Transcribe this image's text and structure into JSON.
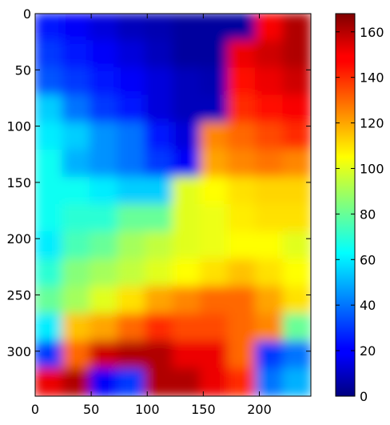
{
  "chart_data": {
    "type": "heatmap",
    "title": "",
    "xlabel": "",
    "ylabel": "",
    "xlim": [
      0,
      246
    ],
    "ylim": [
      340,
      0
    ],
    "x_ticks": [
      0,
      50,
      100,
      150,
      200
    ],
    "y_ticks": [
      0,
      50,
      100,
      150,
      200,
      250,
      300
    ],
    "colormap": "jet",
    "colorbar": {
      "min": 0,
      "max": 168,
      "ticks": [
        0,
        20,
        40,
        60,
        80,
        100,
        120,
        140,
        160
      ]
    },
    "grid_cols": 10,
    "grid_rows": 14,
    "values": [
      [
        25,
        20,
        15,
        10,
        8,
        5,
        5,
        5,
        148,
        160
      ],
      [
        30,
        25,
        20,
        15,
        10,
        5,
        5,
        150,
        155,
        160
      ],
      [
        35,
        30,
        25,
        20,
        15,
        10,
        8,
        145,
        150,
        155
      ],
      [
        55,
        40,
        30,
        25,
        15,
        10,
        10,
        140,
        145,
        148
      ],
      [
        60,
        55,
        45,
        40,
        25,
        15,
        125,
        130,
        135,
        140
      ],
      [
        65,
        50,
        45,
        40,
        30,
        20,
        120,
        125,
        128,
        125
      ],
      [
        65,
        65,
        60,
        55,
        55,
        100,
        105,
        110,
        112,
        112
      ],
      [
        65,
        70,
        70,
        80,
        80,
        100,
        102,
        108,
        110,
        110
      ],
      [
        60,
        75,
        80,
        90,
        95,
        100,
        102,
        105,
        105,
        100
      ],
      [
        70,
        85,
        90,
        95,
        100,
        105,
        110,
        115,
        110,
        105
      ],
      [
        80,
        90,
        100,
        110,
        120,
        125,
        130,
        130,
        120,
        110
      ],
      [
        60,
        115,
        120,
        130,
        140,
        135,
        135,
        130,
        125,
        80
      ],
      [
        30,
        130,
        155,
        160,
        160,
        150,
        150,
        130,
        30,
        40
      ],
      [
        150,
        160,
        20,
        30,
        160,
        160,
        150,
        140,
        40,
        50
      ]
    ]
  }
}
